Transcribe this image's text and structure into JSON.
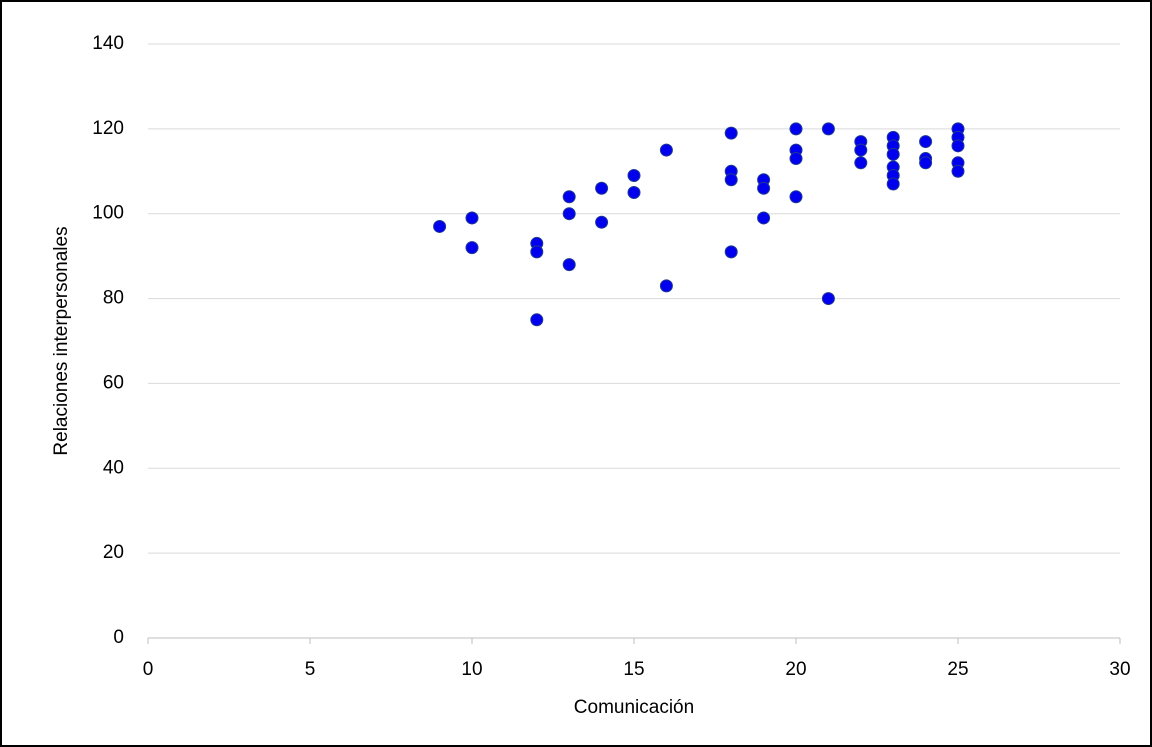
{
  "chart_data": {
    "type": "scatter",
    "xlabel": "Comunicación",
    "ylabel": "Relaciones interpersonales",
    "x": [
      9,
      10,
      10,
      12,
      12,
      12,
      13,
      13,
      13,
      14,
      14,
      15,
      15,
      16,
      16,
      18,
      18,
      18,
      18,
      19,
      19,
      19,
      20,
      20,
      20,
      20,
      21,
      21,
      22,
      22,
      22,
      23,
      23,
      23,
      23,
      23,
      23,
      24,
      24,
      24,
      25,
      25,
      25,
      25,
      25
    ],
    "y": [
      97,
      99,
      92,
      93,
      91,
      75,
      104,
      100,
      88,
      106,
      98,
      109,
      105,
      115,
      83,
      119,
      110,
      108,
      91,
      108,
      106,
      99,
      120,
      115,
      113,
      104,
      120,
      80,
      117,
      115,
      112,
      118,
      116,
      114,
      111,
      109,
      107,
      117,
      113,
      112,
      120,
      118,
      116,
      112,
      110
    ],
    "color": "#0000ee",
    "xlim": [
      0,
      30
    ],
    "xticks": [
      0,
      5,
      10,
      15,
      20,
      25,
      30
    ],
    "ylim": [
      0,
      140
    ],
    "yticks": [
      0,
      20,
      40,
      60,
      80,
      100,
      120,
      140
    ],
    "grid": true
  }
}
